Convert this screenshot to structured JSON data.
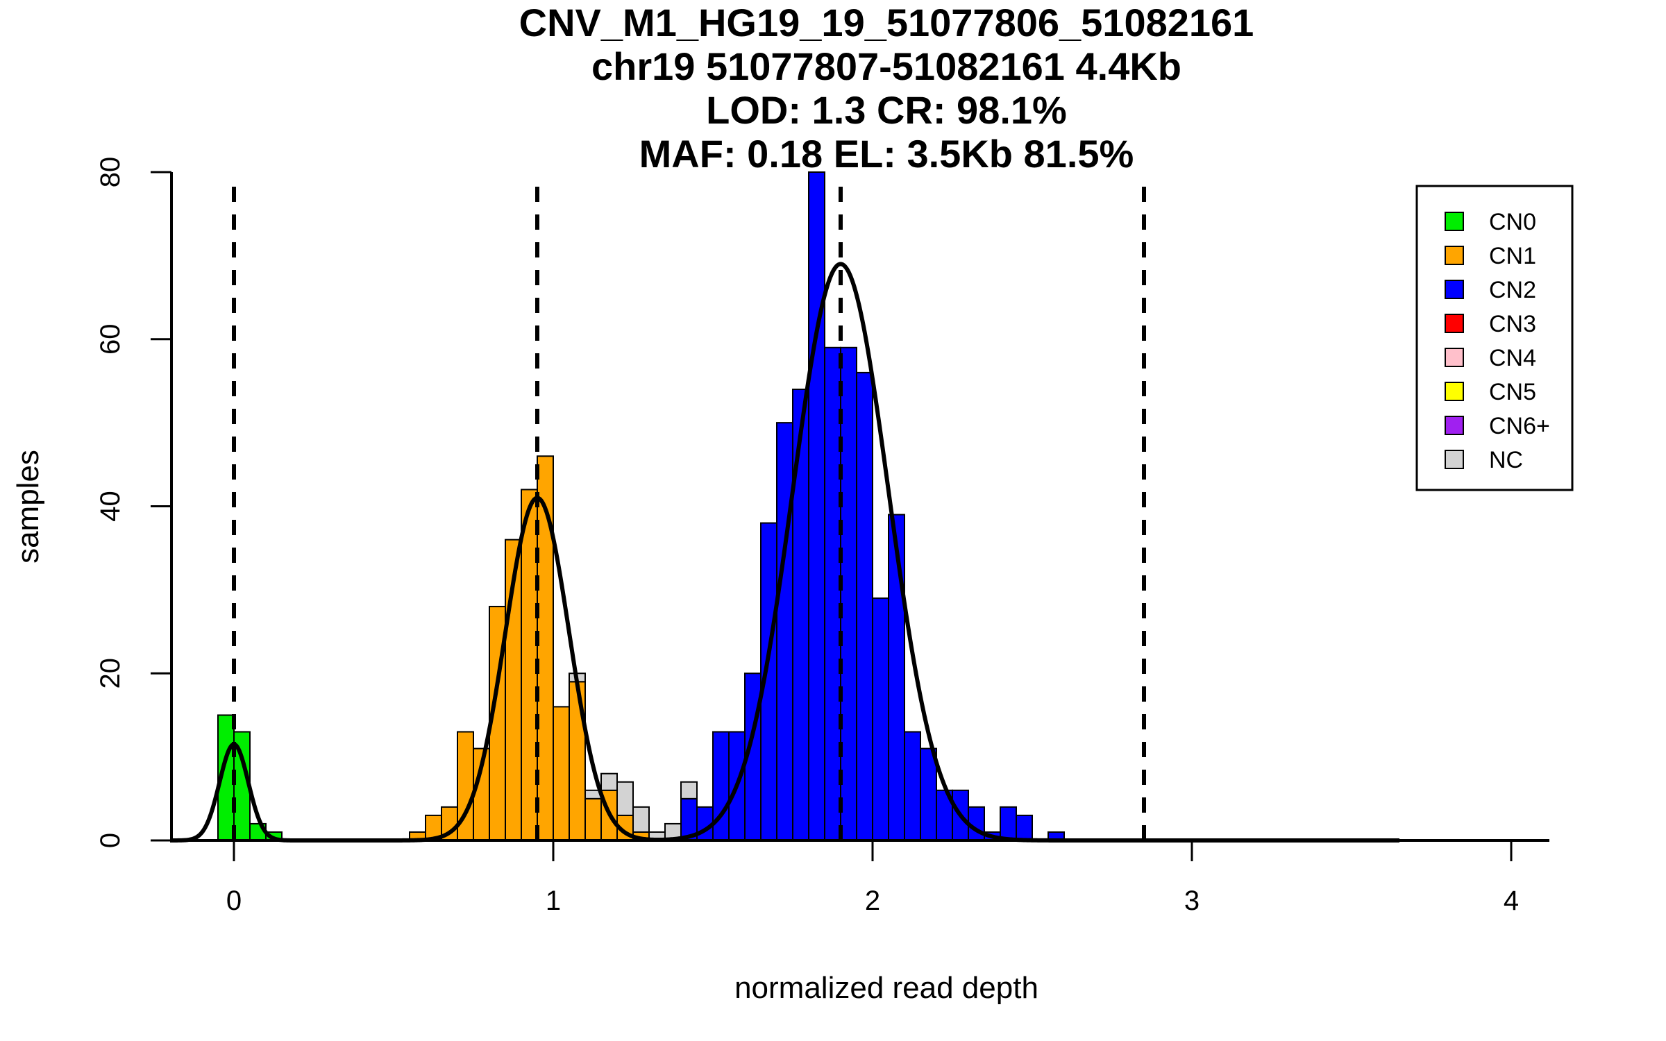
{
  "chart_data": {
    "type": "histogram",
    "title_lines": [
      "CNV_M1_HG19_19_51077806_51082161",
      "chr19 51077807-51082161 4.4Kb",
      "LOD: 1.3 CR: 98.1%",
      "MAF: 0.18 EL: 3.5Kb 81.5%"
    ],
    "xlabel": "normalized read depth",
    "ylabel": "samples",
    "xlim": [
      -0.2,
      4.13
    ],
    "ylim": [
      0,
      80
    ],
    "x_ticks": [
      0,
      1,
      2,
      3,
      4
    ],
    "y_ticks": [
      0,
      20,
      40,
      60,
      80
    ],
    "grid": false,
    "legend_position": "top-right",
    "bin_width": 0.05,
    "legend": [
      {
        "label": "CN0",
        "color": "#00ee00"
      },
      {
        "label": "CN1",
        "color": "#ffa500"
      },
      {
        "label": "CN2",
        "color": "#0000ff"
      },
      {
        "label": "CN3",
        "color": "#ff0000"
      },
      {
        "label": "CN4",
        "color": "#ffc0cb"
      },
      {
        "label": "CN5",
        "color": "#ffff00"
      },
      {
        "label": "CN6+",
        "color": "#a020f0"
      },
      {
        "label": "NC",
        "color": "#d3d3d3"
      }
    ],
    "bins": [
      {
        "x": -0.025,
        "CN0": 15
      },
      {
        "x": 0.025,
        "CN0": 13
      },
      {
        "x": 0.075,
        "CN0": 2
      },
      {
        "x": 0.125,
        "CN0": 1
      },
      {
        "x": 0.575,
        "CN1": 1
      },
      {
        "x": 0.625,
        "CN1": 3
      },
      {
        "x": 0.675,
        "CN1": 4
      },
      {
        "x": 0.725,
        "CN1": 13
      },
      {
        "x": 0.775,
        "CN1": 11
      },
      {
        "x": 0.825,
        "CN1": 28
      },
      {
        "x": 0.875,
        "CN1": 36
      },
      {
        "x": 0.925,
        "CN1": 42
      },
      {
        "x": 0.975,
        "CN1": 46
      },
      {
        "x": 1.025,
        "CN1": 16
      },
      {
        "x": 1.075,
        "CN1": 19,
        "NC": 1
      },
      {
        "x": 1.125,
        "CN1": 5,
        "NC": 1
      },
      {
        "x": 1.175,
        "CN1": 6,
        "NC": 2
      },
      {
        "x": 1.225,
        "CN1": 3,
        "NC": 4
      },
      {
        "x": 1.275,
        "CN1": 1,
        "NC": 3
      },
      {
        "x": 1.325,
        "NC": 1
      },
      {
        "x": 1.375,
        "NC": 2
      },
      {
        "x": 1.425,
        "CN2": 5,
        "NC": 2
      },
      {
        "x": 1.475,
        "CN2": 4
      },
      {
        "x": 1.525,
        "CN2": 13
      },
      {
        "x": 1.575,
        "CN2": 13
      },
      {
        "x": 1.625,
        "CN2": 20
      },
      {
        "x": 1.675,
        "CN2": 38
      },
      {
        "x": 1.725,
        "CN2": 50
      },
      {
        "x": 1.775,
        "CN2": 54
      },
      {
        "x": 1.825,
        "CN2": 80
      },
      {
        "x": 1.875,
        "CN2": 59
      },
      {
        "x": 1.925,
        "CN2": 59
      },
      {
        "x": 1.975,
        "CN2": 56
      },
      {
        "x": 2.025,
        "CN2": 29
      },
      {
        "x": 2.075,
        "CN2": 39
      },
      {
        "x": 2.125,
        "CN2": 13
      },
      {
        "x": 2.175,
        "CN2": 11
      },
      {
        "x": 2.225,
        "CN2": 6
      },
      {
        "x": 2.275,
        "CN2": 6
      },
      {
        "x": 2.325,
        "CN2": 4
      },
      {
        "x": 2.375,
        "CN2": 1
      },
      {
        "x": 2.425,
        "CN2": 4
      },
      {
        "x": 2.475,
        "CN2": 3
      },
      {
        "x": 2.575,
        "CN2": 1
      }
    ],
    "fitted_curves": [
      {
        "mean": 0.0,
        "sd": 0.045,
        "peak": 11.5
      },
      {
        "mean": 0.95,
        "sd": 0.1,
        "peak": 41
      },
      {
        "mean": 1.9,
        "sd": 0.15,
        "peak": 69
      }
    ],
    "curve_baseline_range": [
      -0.2,
      3.65
    ],
    "vlines": [
      0.0,
      0.95,
      1.9,
      2.85
    ]
  }
}
